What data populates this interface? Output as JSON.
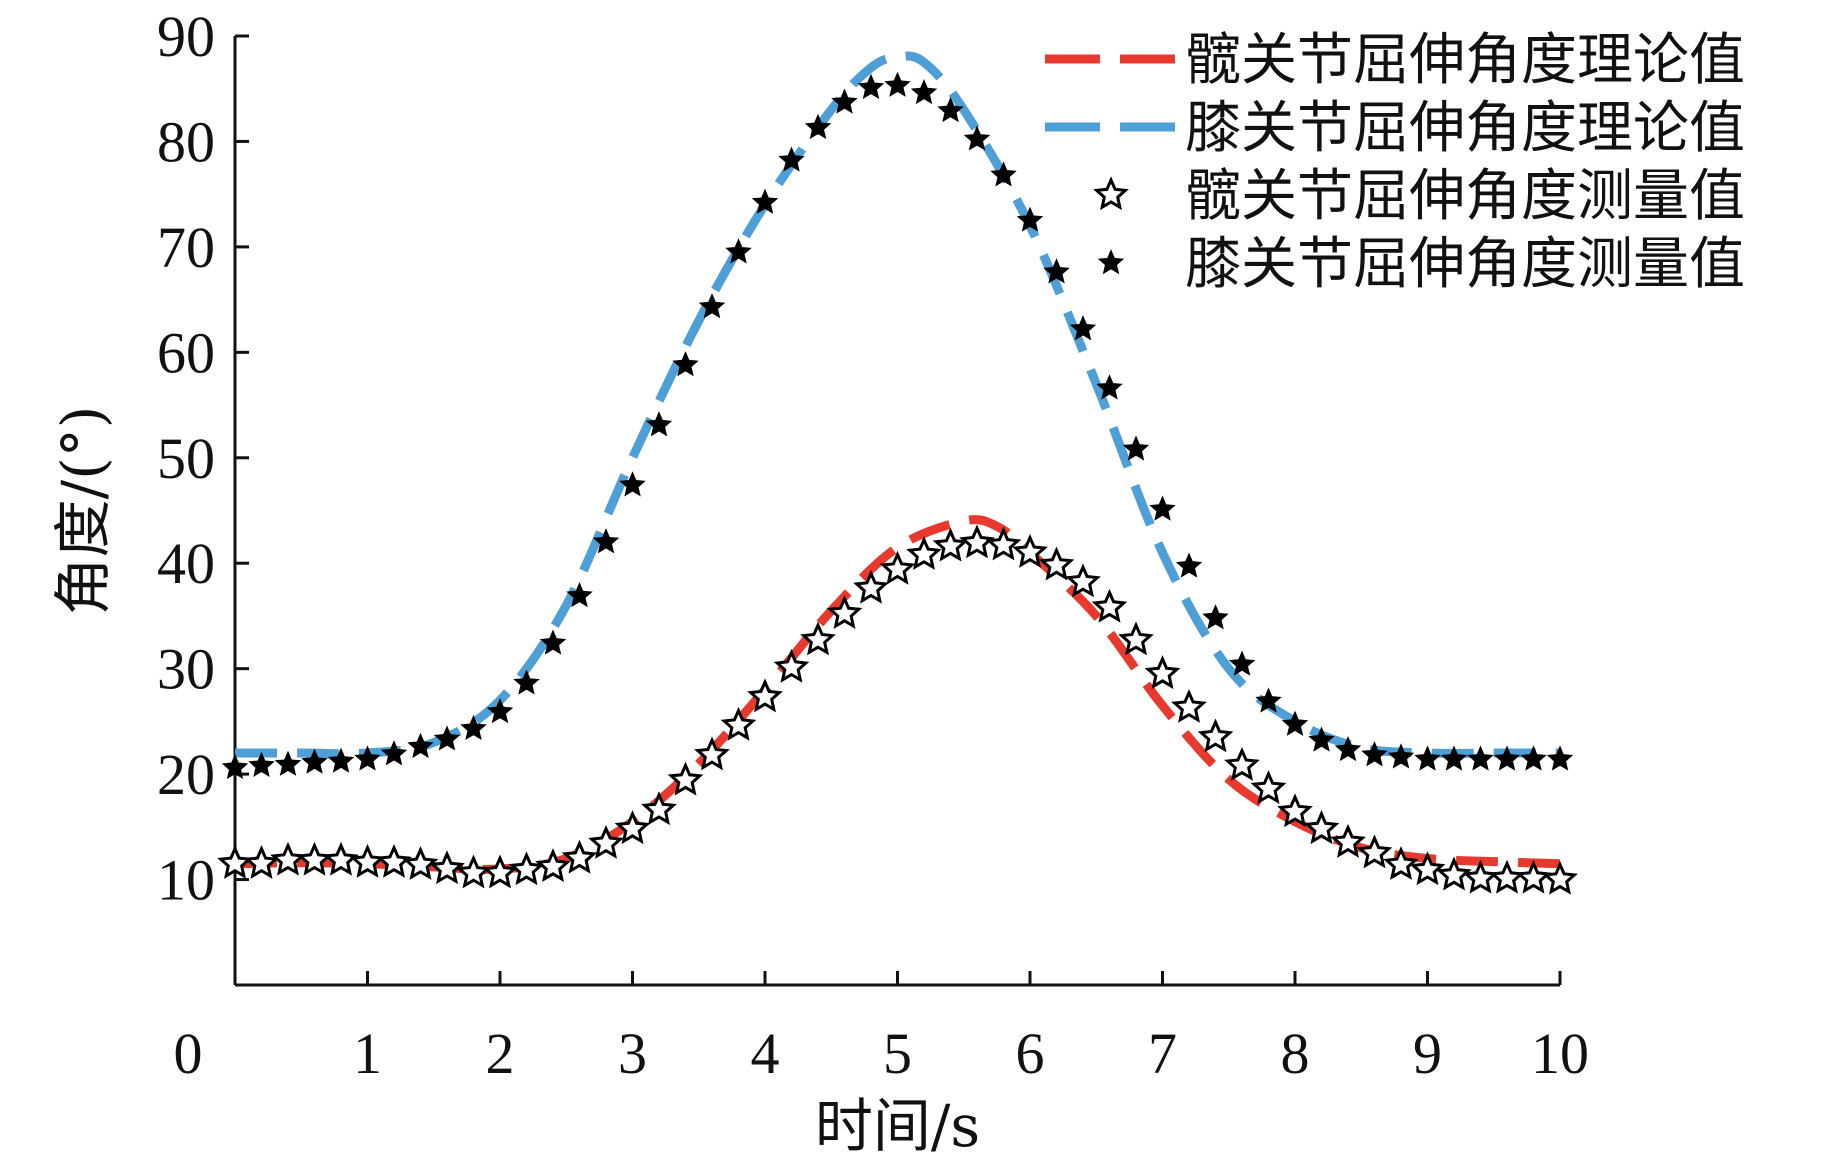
{
  "chart_data": {
    "type": "line",
    "title": "",
    "xlabel": "时间/s",
    "ylabel": "角度/(°)",
    "xlim": [
      0,
      10
    ],
    "ylim": [
      0,
      90
    ],
    "x_ticks": [
      0,
      1,
      2,
      3,
      4,
      5,
      6,
      7,
      8,
      9,
      10
    ],
    "y_ticks": [
      10,
      20,
      30,
      40,
      50,
      60,
      70,
      80,
      90
    ],
    "grid": false,
    "legend_position": "top-right",
    "series": [
      {
        "name": "髋关节屈伸角度理论值",
        "style": "dashed",
        "color": "#e8392e",
        "x": [
          0,
          0.5,
          1,
          1.5,
          2,
          2.5,
          3,
          3.5,
          4,
          4.5,
          5,
          5.5,
          5.75,
          6,
          6.5,
          7,
          7.5,
          8,
          8.5,
          9,
          9.5,
          10
        ],
        "y": [
          11.5,
          11.6,
          11.5,
          11.2,
          11,
          12,
          15.5,
          21,
          28,
          35.5,
          41.5,
          44,
          43.5,
          41,
          35,
          26.5,
          19.5,
          15.5,
          13,
          12,
          11.7,
          11.5
        ]
      },
      {
        "name": "膝关节屈伸角度理论值",
        "style": "dashed",
        "color": "#4d9fd6",
        "x": [
          0,
          0.5,
          1,
          1.5,
          2,
          2.5,
          3,
          3.5,
          4,
          4.5,
          4.8,
          5,
          5.2,
          5.5,
          6,
          6.5,
          7,
          7.5,
          8,
          8.5,
          9,
          9.5,
          10
        ],
        "y": [
          22,
          22,
          22,
          23,
          27,
          36,
          50,
          63,
          74,
          83,
          87,
          88,
          87.5,
          83,
          72,
          57,
          41,
          30,
          25,
          22.5,
          22,
          22,
          22
        ]
      },
      {
        "name": "髋关节屈伸角度测量值",
        "style": "star-open",
        "color": "#000000",
        "x": [
          0,
          0.2,
          0.4,
          0.6,
          0.8,
          1.0,
          1.2,
          1.4,
          1.6,
          1.8,
          2.0,
          2.2,
          2.4,
          2.6,
          2.8,
          3.0,
          3.2,
          3.4,
          3.6,
          3.8,
          4.0,
          4.2,
          4.4,
          4.6,
          4.8,
          5.0,
          5.2,
          5.4,
          5.6,
          5.8,
          6.0,
          6.2,
          6.4,
          6.6,
          6.8,
          7.0,
          7.2,
          7.4,
          7.6,
          7.8,
          8.0,
          8.2,
          8.4,
          8.6,
          8.8,
          9.0,
          9.2,
          9.4,
          9.6,
          9.8,
          10.0
        ],
        "y": [
          11.5,
          11.5,
          11.8,
          11.8,
          11.8,
          11.6,
          11.6,
          11.4,
          11.0,
          10.6,
          10.6,
          10.9,
          11.2,
          12.0,
          13.4,
          14.8,
          16.6,
          19.4,
          21.8,
          24.6,
          27.3,
          30.1,
          32.7,
          35.2,
          37.6,
          39.4,
          40.8,
          41.6,
          41.9,
          41.7,
          41.0,
          39.8,
          38.2,
          35.8,
          32.7,
          29.5,
          26.3,
          23.5,
          20.8,
          18.6,
          16.4,
          14.8,
          13.5,
          12.5,
          11.4,
          10.9,
          10.4,
          10.1,
          10.1,
          10.1,
          10.0
        ]
      },
      {
        "name": "膝关节屈伸角度测量值",
        "style": "star-filled",
        "color": "#000000",
        "x": [
          0,
          0.2,
          0.4,
          0.6,
          0.8,
          1.0,
          1.2,
          1.4,
          1.6,
          1.8,
          2.0,
          2.2,
          2.4,
          2.6,
          2.8,
          3.0,
          3.2,
          3.4,
          3.6,
          3.8,
          4.0,
          4.2,
          4.4,
          4.6,
          4.8,
          5.0,
          5.2,
          5.4,
          5.6,
          5.8,
          6.0,
          6.2,
          6.4,
          6.6,
          6.8,
          7.0,
          7.2,
          7.4,
          7.6,
          7.8,
          8.0,
          8.2,
          8.4,
          8.6,
          8.8,
          9.0,
          9.2,
          9.4,
          9.6,
          9.8,
          10.0
        ],
        "y": [
          20.6,
          20.8,
          20.9,
          21.1,
          21.2,
          21.4,
          21.9,
          22.6,
          23.3,
          24.3,
          25.9,
          28.6,
          32.4,
          36.9,
          42.0,
          47.4,
          53.1,
          58.8,
          64.3,
          69.5,
          74.2,
          78.2,
          81.3,
          83.7,
          85.1,
          85.3,
          84.6,
          82.9,
          80.2,
          76.8,
          72.5,
          67.6,
          62.2,
          56.6,
          50.8,
          45.1,
          39.7,
          34.8,
          30.4,
          26.9,
          24.7,
          23.2,
          22.3,
          21.8,
          21.6,
          21.4,
          21.4,
          21.4,
          21.4,
          21.4,
          21.4
        ]
      }
    ]
  }
}
